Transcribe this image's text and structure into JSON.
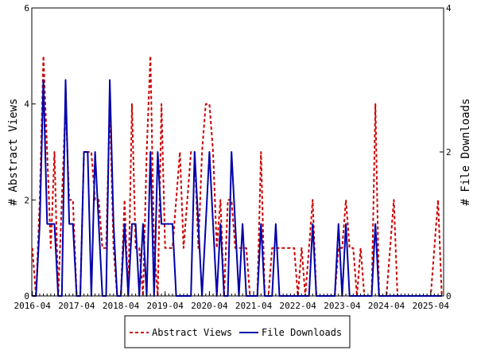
{
  "chart_data": {
    "type": "line",
    "ylabel": "# Abstract Views",
    "y2label": "# File Downloads",
    "ylim": [
      0,
      6
    ],
    "y2lim": [
      0,
      4
    ],
    "yticks": [
      "0",
      "2",
      "4",
      "6"
    ],
    "y2ticks": [
      "0",
      "2",
      "4"
    ],
    "x_ticks": [
      "2016-04",
      "2017-04",
      "2018-04",
      "2019-04",
      "2020-04",
      "2021-04",
      "2022-04",
      "2023-04",
      "2024-04",
      "2025-04"
    ],
    "grid": false,
    "legend_position": "bottom",
    "series": [
      {
        "name": "Abstract Views",
        "axis": "left",
        "color": "#cc0000",
        "style": "dashed",
        "points": [
          [
            "2016-04",
            1
          ],
          [
            "2016-05",
            0
          ],
          [
            "2016-06",
            2
          ],
          [
            "2016-07",
            5
          ],
          [
            "2016-08",
            3
          ],
          [
            "2016-09",
            1
          ],
          [
            "2016-10",
            3
          ],
          [
            "2016-11",
            0
          ],
          [
            "2016-12",
            2
          ],
          [
            "2017-01",
            4
          ],
          [
            "2017-02",
            2
          ],
          [
            "2017-03",
            2
          ],
          [
            "2017-04",
            0
          ],
          [
            "2017-05",
            0
          ],
          [
            "2017-06",
            3
          ],
          [
            "2017-07",
            3
          ],
          [
            "2017-08",
            3
          ],
          [
            "2017-09",
            2
          ],
          [
            "2017-10",
            2
          ],
          [
            "2017-11",
            1
          ],
          [
            "2017-12",
            1
          ],
          [
            "2018-01",
            4
          ],
          [
            "2018-02",
            1
          ],
          [
            "2018-03",
            0
          ],
          [
            "2018-04",
            0
          ],
          [
            "2018-05",
            2
          ],
          [
            "2018-06",
            0
          ],
          [
            "2018-07",
            4
          ],
          [
            "2018-08",
            1
          ],
          [
            "2018-09",
            1
          ],
          [
            "2018-10",
            0
          ],
          [
            "2018-11",
            3
          ],
          [
            "2018-12",
            5
          ],
          [
            "2019-01",
            1
          ],
          [
            "2019-02",
            0
          ],
          [
            "2019-03",
            4
          ],
          [
            "2019-04",
            1
          ],
          [
            "2019-05",
            1
          ],
          [
            "2019-06",
            1
          ],
          [
            "2019-07",
            2
          ],
          [
            "2019-08",
            3
          ],
          [
            "2019-09",
            1
          ],
          [
            "2019-10",
            2
          ],
          [
            "2019-11",
            3
          ],
          [
            "2019-12",
            3
          ],
          [
            "2020-01",
            1
          ],
          [
            "2020-02",
            3
          ],
          [
            "2020-03",
            4
          ],
          [
            "2020-04",
            4
          ],
          [
            "2020-05",
            3
          ],
          [
            "2020-06",
            1
          ],
          [
            "2020-07",
            2
          ],
          [
            "2020-08",
            0
          ],
          [
            "2020-09",
            2
          ],
          [
            "2020-10",
            2
          ],
          [
            "2020-11",
            1
          ],
          [
            "2020-12",
            1
          ],
          [
            "2021-01",
            1
          ],
          [
            "2021-02",
            1
          ],
          [
            "2021-03",
            0
          ],
          [
            "2021-04",
            0
          ],
          [
            "2021-05",
            0
          ],
          [
            "2021-06",
            3
          ],
          [
            "2021-07",
            0
          ],
          [
            "2021-08",
            0
          ],
          [
            "2021-09",
            1
          ],
          [
            "2021-10",
            1
          ],
          [
            "2021-11",
            1
          ],
          [
            "2021-12",
            1
          ],
          [
            "2022-01",
            1
          ],
          [
            "2022-02",
            1
          ],
          [
            "2022-03",
            1
          ],
          [
            "2022-04",
            0
          ],
          [
            "2022-05",
            1
          ],
          [
            "2022-06",
            0
          ],
          [
            "2022-07",
            1
          ],
          [
            "2022-08",
            2
          ],
          [
            "2022-09",
            0
          ],
          [
            "2022-10",
            0
          ],
          [
            "2022-11",
            0
          ],
          [
            "2022-12",
            0
          ],
          [
            "2023-01",
            0
          ],
          [
            "2023-02",
            0
          ],
          [
            "2023-03",
            1
          ],
          [
            "2023-04",
            1
          ],
          [
            "2023-05",
            2
          ],
          [
            "2023-06",
            1
          ],
          [
            "2023-07",
            1
          ],
          [
            "2023-08",
            0
          ],
          [
            "2023-09",
            1
          ],
          [
            "2023-10",
            0
          ],
          [
            "2023-11",
            0
          ],
          [
            "2023-12",
            0
          ],
          [
            "2024-01",
            4
          ],
          [
            "2024-02",
            0
          ],
          [
            "2024-03",
            0
          ],
          [
            "2024-04",
            0
          ],
          [
            "2024-05",
            1
          ],
          [
            "2024-06",
            2
          ],
          [
            "2024-07",
            0
          ],
          [
            "2024-08",
            0
          ],
          [
            "2024-09",
            0
          ],
          [
            "2024-10",
            0
          ],
          [
            "2024-11",
            0
          ],
          [
            "2024-12",
            0
          ],
          [
            "2025-01",
            0
          ],
          [
            "2025-02",
            0
          ],
          [
            "2025-03",
            0
          ],
          [
            "2025-04",
            0
          ],
          [
            "2025-05",
            1
          ],
          [
            "2025-06",
            2
          ],
          [
            "2025-07",
            0
          ]
        ]
      },
      {
        "name": "File Downloads",
        "axis": "right",
        "color": "#0000aa",
        "style": "solid",
        "points": [
          [
            "2016-04",
            0
          ],
          [
            "2016-05",
            0
          ],
          [
            "2016-06",
            1
          ],
          [
            "2016-07",
            3
          ],
          [
            "2016-08",
            1
          ],
          [
            "2016-09",
            1
          ],
          [
            "2016-10",
            1
          ],
          [
            "2016-11",
            0
          ],
          [
            "2016-12",
            0
          ],
          [
            "2017-01",
            3
          ],
          [
            "2017-02",
            1
          ],
          [
            "2017-03",
            1
          ],
          [
            "2017-04",
            0
          ],
          [
            "2017-05",
            0
          ],
          [
            "2017-06",
            2
          ],
          [
            "2017-07",
            2
          ],
          [
            "2017-08",
            0
          ],
          [
            "2017-09",
            2
          ],
          [
            "2017-10",
            1
          ],
          [
            "2017-11",
            0
          ],
          [
            "2017-12",
            0
          ],
          [
            "2018-01",
            3
          ],
          [
            "2018-02",
            1
          ],
          [
            "2018-03",
            0
          ],
          [
            "2018-04",
            0
          ],
          [
            "2018-05",
            1
          ],
          [
            "2018-06",
            0
          ],
          [
            "2018-07",
            1
          ],
          [
            "2018-08",
            1
          ],
          [
            "2018-09",
            0
          ],
          [
            "2018-10",
            1
          ],
          [
            "2018-11",
            0
          ],
          [
            "2018-12",
            2
          ],
          [
            "2019-01",
            0
          ],
          [
            "2019-02",
            2
          ],
          [
            "2019-03",
            1
          ],
          [
            "2019-04",
            1
          ],
          [
            "2019-05",
            1
          ],
          [
            "2019-06",
            1
          ],
          [
            "2019-07",
            0
          ],
          [
            "2019-08",
            0
          ],
          [
            "2019-09",
            0
          ],
          [
            "2019-10",
            0
          ],
          [
            "2019-11",
            0
          ],
          [
            "2019-12",
            2
          ],
          [
            "2020-01",
            1
          ],
          [
            "2020-02",
            0
          ],
          [
            "2020-03",
            1
          ],
          [
            "2020-04",
            2
          ],
          [
            "2020-05",
            1
          ],
          [
            "2020-06",
            0
          ],
          [
            "2020-07",
            1
          ],
          [
            "2020-08",
            0
          ],
          [
            "2020-09",
            0
          ],
          [
            "2020-10",
            2
          ],
          [
            "2020-11",
            1
          ],
          [
            "2020-12",
            0
          ],
          [
            "2021-01",
            1
          ],
          [
            "2021-02",
            0
          ],
          [
            "2021-03",
            0
          ],
          [
            "2021-04",
            0
          ],
          [
            "2021-05",
            0
          ],
          [
            "2021-06",
            1
          ],
          [
            "2021-07",
            0
          ],
          [
            "2021-08",
            0
          ],
          [
            "2021-09",
            0
          ],
          [
            "2021-10",
            1
          ],
          [
            "2021-11",
            0
          ],
          [
            "2021-12",
            0
          ],
          [
            "2022-01",
            0
          ],
          [
            "2022-02",
            0
          ],
          [
            "2022-03",
            0
          ],
          [
            "2022-04",
            0
          ],
          [
            "2022-05",
            0
          ],
          [
            "2022-06",
            0
          ],
          [
            "2022-07",
            0
          ],
          [
            "2022-08",
            1
          ],
          [
            "2022-09",
            0
          ],
          [
            "2022-10",
            0
          ],
          [
            "2022-11",
            0
          ],
          [
            "2022-12",
            0
          ],
          [
            "2023-01",
            0
          ],
          [
            "2023-02",
            0
          ],
          [
            "2023-03",
            1
          ],
          [
            "2023-04",
            0
          ],
          [
            "2023-05",
            1
          ],
          [
            "2023-06",
            0
          ],
          [
            "2023-07",
            0
          ],
          [
            "2023-08",
            0
          ],
          [
            "2023-09",
            0
          ],
          [
            "2023-10",
            0
          ],
          [
            "2023-11",
            0
          ],
          [
            "2023-12",
            0
          ],
          [
            "2024-01",
            1
          ],
          [
            "2024-02",
            0
          ],
          [
            "2024-03",
            0
          ],
          [
            "2024-04",
            0
          ],
          [
            "2024-05",
            0
          ],
          [
            "2024-06",
            0
          ],
          [
            "2024-07",
            0
          ],
          [
            "2024-08",
            0
          ],
          [
            "2024-09",
            0
          ],
          [
            "2024-10",
            0
          ],
          [
            "2024-11",
            0
          ],
          [
            "2024-12",
            0
          ],
          [
            "2025-01",
            0
          ],
          [
            "2025-02",
            0
          ],
          [
            "2025-03",
            0
          ],
          [
            "2025-04",
            0
          ],
          [
            "2025-05",
            0
          ],
          [
            "2025-06",
            0
          ],
          [
            "2025-07",
            0
          ]
        ]
      }
    ]
  },
  "legend": {
    "items": [
      {
        "label": "Abstract Views",
        "color": "#cc0000",
        "style": "dashed"
      },
      {
        "label": "File Downloads",
        "color": "#0000aa",
        "style": "solid"
      }
    ]
  }
}
